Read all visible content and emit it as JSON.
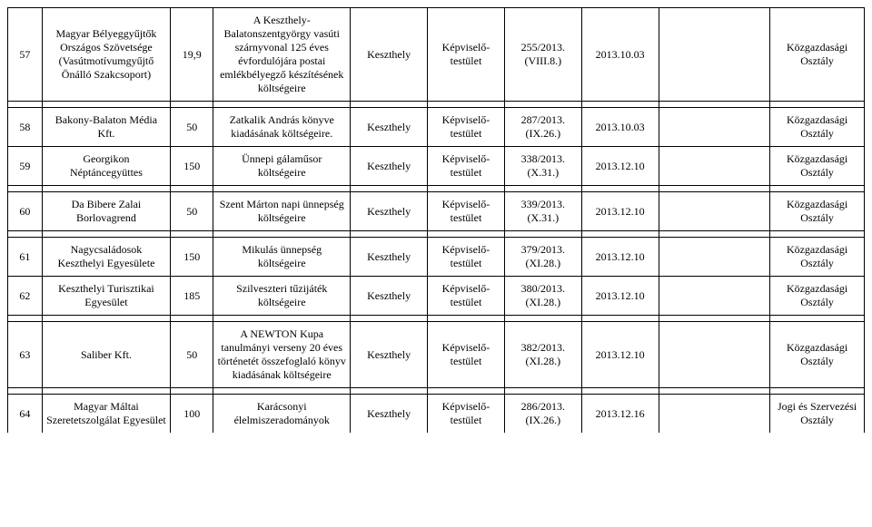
{
  "columns": [
    "num",
    "name",
    "amount",
    "desc",
    "city",
    "body",
    "resolution",
    "date",
    "blank",
    "dept"
  ],
  "rows": [
    {
      "num": "57",
      "name": "Magyar Bélyeggyűjtők Országos Szövetsége (Vasútmotívumgyűjtő Önálló Szakcsoport)",
      "amount": "19,9",
      "desc": "A Keszthely-Balatonszentgyörgy vasúti szárnyvonal 125 éves évfordulójára postai emlékbélyegző készítésének költségeire",
      "city": "Keszthely",
      "body": "Képviselő-testület",
      "resolution": "255/2013. (VIII.8.)",
      "date": "2013.10.03",
      "blank": "",
      "dept": "Közgazdasági Osztály"
    },
    {
      "num": "58",
      "name": "Bakony-Balaton Média Kft.",
      "amount": "50",
      "desc": "Zatkalik András könyve kiadásának költségeire.",
      "city": "Keszthely",
      "body": "Képviselő-testület",
      "resolution": "287/2013. (IX.26.)",
      "date": "2013.10.03",
      "blank": "",
      "dept": "Közgazdasági Osztály"
    },
    {
      "num": "59",
      "name": "Georgikon Néptáncegyüttes",
      "amount": "150",
      "desc": "Ünnepi gálaműsor költségeire",
      "city": "Keszthely",
      "body": "Képviselő-testület",
      "resolution": "338/2013. (X.31.)",
      "date": "2013.12.10",
      "blank": "",
      "dept": "Közgazdasági Osztály"
    },
    {
      "num": "60",
      "name": "Da Bibere Zalai Borlovagrend",
      "amount": "50",
      "desc": "Szent Márton napi ünnepség költségeire",
      "city": "Keszthely",
      "body": "Képviselő-testület",
      "resolution": "339/2013. (X.31.)",
      "date": "2013.12.10",
      "blank": "",
      "dept": "Közgazdasági Osztály"
    },
    {
      "num": "61",
      "name": "Nagycsaládosok Keszthelyi Egyesülete",
      "amount": "150",
      "desc": "Mikulás ünnepség költségeire",
      "city": "Keszthely",
      "body": "Képviselő-testület",
      "resolution": "379/2013. (XI.28.)",
      "date": "2013.12.10",
      "blank": "",
      "dept": "Közgazdasági Osztály"
    },
    {
      "num": "62",
      "name": "Keszthelyi Turisztikai Egyesület",
      "amount": "185",
      "desc": "Szilveszteri tűzijáték költségeire",
      "city": "Keszthely",
      "body": "Képviselő-testület",
      "resolution": "380/2013. (XI.28.)",
      "date": "2013.12.10",
      "blank": "",
      "dept": "Közgazdasági Osztály"
    },
    {
      "num": "63",
      "name": "Saliber Kft.",
      "amount": "50",
      "desc": "A NEWTON Kupa tanulmányi verseny 20 éves történetét összefoglaló könyv kiadásának költségeire",
      "city": "Keszthely",
      "body": "Képviselő-testület",
      "resolution": "382/2013. (XI.28.)",
      "date": "2013.12.10",
      "blank": "",
      "dept": "Közgazdasági Osztály"
    },
    {
      "num": "64",
      "name": "Magyar Máltai Szeretetszolgálat Egyesület",
      "amount": "100",
      "desc": "Karácsonyi élelmiszeradományok",
      "city": "Keszthely",
      "body": "Képviselő-testület",
      "resolution": "286/2013. (IX.26.)",
      "date": "2013.12.16",
      "blank": "",
      "dept": "Jogi és Szervezési Osztály"
    }
  ],
  "groups": [
    [
      0
    ],
    [
      1,
      2
    ],
    [
      3
    ],
    [
      4,
      5
    ],
    [
      6
    ],
    [
      7
    ]
  ],
  "last_row_open": true
}
